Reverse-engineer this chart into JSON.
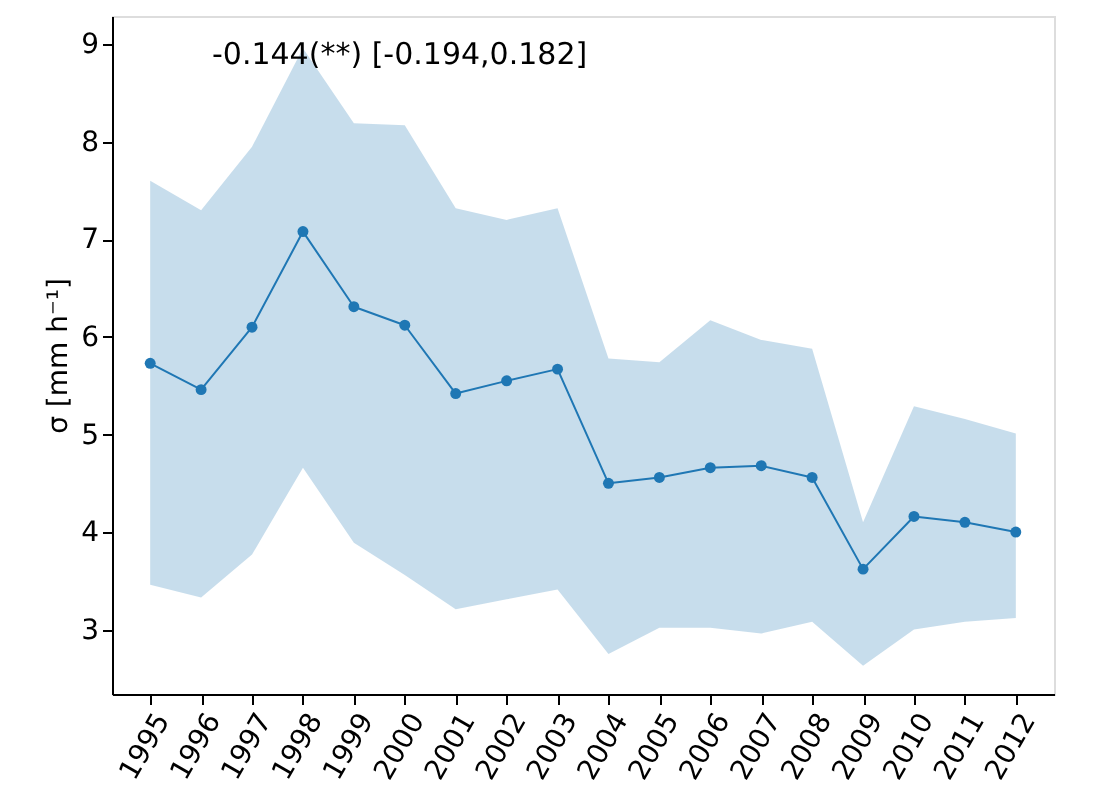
{
  "chart_data": {
    "type": "line",
    "ylabel": "σ [mm h⁻¹]",
    "annotations": [
      "-0.144(**) [-0.194,0.182]"
    ],
    "categories": [
      "1995",
      "1996",
      "1997",
      "1998",
      "1999",
      "2000",
      "2001",
      "2002",
      "2003",
      "2004",
      "2005",
      "2006",
      "2007",
      "2008",
      "2009",
      "2010",
      "2011",
      "2012"
    ],
    "series": [
      {
        "color": "#1f77b4",
        "values": [
          5.73,
          5.46,
          6.1,
          7.08,
          6.31,
          6.12,
          5.42,
          5.55,
          5.67,
          4.5,
          4.56,
          4.66,
          4.68,
          4.56,
          3.62,
          4.16,
          4.1,
          4.0
        ],
        "upper": [
          7.6,
          7.3,
          7.95,
          8.96,
          8.19,
          8.17,
          7.32,
          7.2,
          7.32,
          5.78,
          5.74,
          6.17,
          5.97,
          5.88,
          4.1,
          5.29,
          5.16,
          5.01
        ],
        "lower": [
          3.46,
          3.33,
          3.77,
          4.66,
          3.89,
          3.56,
          3.21,
          3.31,
          3.41,
          2.75,
          3.02,
          3.02,
          2.96,
          3.08,
          2.63,
          3.0,
          3.08,
          3.12
        ]
      }
    ],
    "ylim": [
      2.34,
      9.29
    ],
    "yticks": [
      3,
      4,
      5,
      6,
      7,
      8,
      9
    ],
    "grid": false,
    "marker": "circle",
    "line_style": "solid"
  }
}
